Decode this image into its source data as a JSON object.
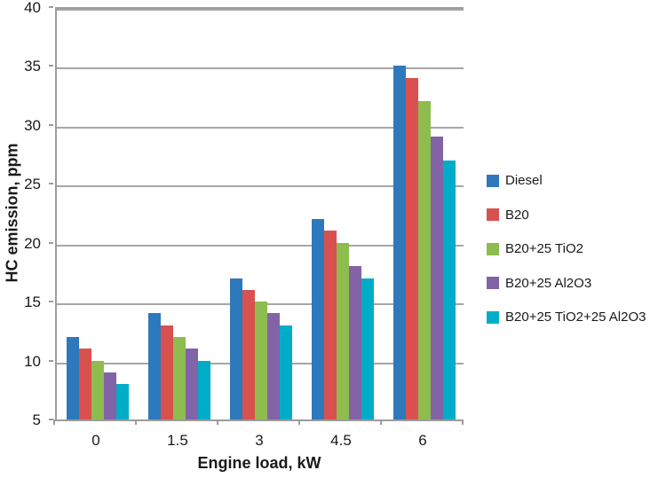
{
  "chart_data": {
    "type": "bar",
    "title": "",
    "xlabel": "Engine load, kW",
    "ylabel": "HC emission, ppm",
    "categories": [
      "0",
      "1.5",
      "3",
      "4.5",
      "6"
    ],
    "series": [
      {
        "name": "Diesel",
        "color": "#2e79bc",
        "values": [
          12,
          14,
          17,
          22,
          35
        ]
      },
      {
        "name": "B20",
        "color": "#d9514e",
        "values": [
          11,
          13,
          16,
          21,
          34
        ]
      },
      {
        "name": "B20+25 TiO2",
        "color": "#8ebc4f",
        "values": [
          10,
          12,
          15,
          20,
          32
        ]
      },
      {
        "name": "B20+25 Al2O3",
        "color": "#8263a8",
        "values": [
          9,
          11,
          14,
          18,
          29
        ]
      },
      {
        "name": "B20+25 TiO2+25 Al2O3",
        "color": "#00adc8",
        "values": [
          8,
          10,
          13,
          17,
          27
        ]
      }
    ],
    "ylim": [
      5,
      40
    ],
    "ytick_step": 5,
    "grid": true,
    "legend_position": "right",
    "colors": {
      "grid": "#a6a6a6",
      "axis": "#9c9c9c",
      "text": "#1a1a1a",
      "background": "#ffffff"
    }
  }
}
